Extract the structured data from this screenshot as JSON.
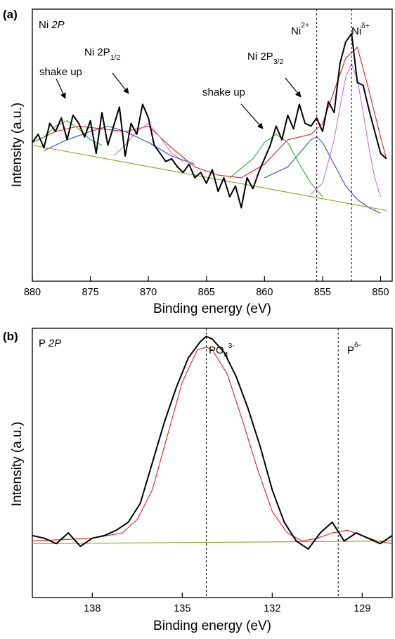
{
  "chart_data": [
    {
      "panel": "(a)",
      "type": "line",
      "label": "Ni 2P",
      "xlabel": "Binding energy (eV)",
      "ylabel": "Intensity (a.u.)",
      "xlim": [
        880,
        849
      ],
      "ylim": [
        0,
        100
      ],
      "x_reversed": true,
      "x_ticks": [
        880,
        875,
        870,
        865,
        860,
        855,
        850
      ],
      "y_ticks_labeled": false,
      "grid": false,
      "reference_lines": [
        {
          "x": 855.5,
          "label": "Ni",
          "sup": "2+"
        },
        {
          "x": 852.5,
          "label": "Ni",
          "sup": "δ+"
        }
      ],
      "annotations": [
        {
          "text": "shake up",
          "x": 877.2,
          "y": 60
        },
        {
          "text": "Ni 2P",
          "sub": "1/2",
          "x": 872.5,
          "y": 66
        },
        {
          "text": "shake up",
          "x": 859.6,
          "y": 63
        },
        {
          "text": "Ni 2P",
          "sub": "3/2",
          "x": 857.2,
          "y": 66
        }
      ],
      "series": [
        {
          "color": "#000000",
          "x": [
            880,
            879.5,
            879,
            878.5,
            878,
            877.5,
            877,
            876.5,
            876,
            875.5,
            875,
            874.5,
            874,
            873.5,
            873,
            872.5,
            872,
            871.5,
            871,
            870.5,
            870,
            869.5,
            869,
            868.5,
            868,
            867.5,
            867,
            866.5,
            866,
            865.5,
            865,
            864.5,
            864,
            863.5,
            863,
            862.5,
            862,
            861.5,
            861,
            860.5,
            860,
            859.5,
            859,
            858.5,
            858,
            857.5,
            857,
            856.5,
            856,
            855.5,
            855,
            854.5,
            854,
            853.5,
            853,
            852.5,
            852,
            851.5,
            851,
            850.5,
            850,
            849.5
          ],
          "values": [
            51,
            54,
            49,
            58,
            55,
            60,
            52,
            61,
            58,
            53,
            59,
            47,
            62,
            50,
            57,
            64,
            46,
            58,
            54,
            65,
            60,
            50,
            47,
            44,
            45,
            42,
            40,
            43,
            38,
            40,
            36,
            41,
            33,
            38,
            31,
            35,
            27,
            38,
            34,
            40,
            45,
            50,
            57,
            52,
            61,
            56,
            65,
            58,
            57,
            60,
            55,
            66,
            62,
            80,
            88,
            91,
            73,
            72,
            63,
            55,
            47,
            45
          ]
        }
      ],
      "fit_components": [
        {
          "name": "envelope",
          "color": "#e02020",
          "x": [
            880,
            878,
            876,
            874,
            872,
            870,
            868,
            866,
            864,
            862,
            860,
            858,
            856,
            855,
            854,
            853,
            852,
            851,
            850,
            849.5
          ],
          "values": [
            51,
            55,
            57,
            56,
            55,
            57,
            49,
            42,
            39,
            38,
            43,
            52,
            54,
            58,
            70,
            82,
            86,
            70,
            53,
            45
          ]
        },
        {
          "name": "peak 852.5",
          "color": "#d070d0",
          "x": [
            856,
            855,
            854,
            853.5,
            853,
            852.5,
            852,
            851.5,
            851,
            850.5,
            850
          ],
          "values": [
            32,
            36,
            52,
            64,
            75,
            80,
            74,
            62,
            49,
            38,
            31
          ]
        },
        {
          "name": "peak 855.5",
          "color": "#3050c0",
          "x": [
            860,
            858,
            857,
            856,
            855.5,
            855,
            854,
            853,
            852,
            851,
            850
          ],
          "values": [
            38,
            42,
            47,
            52,
            53,
            51,
            43,
            35,
            30,
            27,
            25
          ]
        },
        {
          "name": "peak 859",
          "color": "#30b030",
          "x": [
            863,
            861,
            860,
            859,
            858,
            857,
            856,
            855
          ],
          "values": [
            38,
            45,
            51,
            54,
            51,
            43,
            36,
            31
          ]
        },
        {
          "name": "peak 870",
          "color": "#d070d0",
          "x": [
            873,
            872,
            871,
            870,
            869,
            868,
            867
          ],
          "values": [
            46,
            50,
            55,
            58,
            53,
            47,
            44
          ]
        },
        {
          "name": "peak 873.5",
          "color": "#3050c0",
          "x": [
            879,
            877,
            875,
            873.5,
            872,
            870,
            868,
            866
          ],
          "values": [
            48,
            52,
            55,
            57,
            55,
            51,
            46,
            43
          ]
        },
        {
          "name": "peak 877",
          "color": "#30b030",
          "x": [
            880,
            879,
            878,
            877,
            876,
            875,
            874
          ],
          "values": [
            51,
            53,
            57,
            59,
            56,
            52,
            50
          ]
        },
        {
          "name": "baseline",
          "color": "#90a020",
          "x": [
            880,
            849.5
          ],
          "values": [
            50,
            26
          ]
        }
      ]
    },
    {
      "panel": "(b)",
      "type": "line",
      "label": "P 2P",
      "xlabel": "Binding energy (eV)",
      "ylabel": "Intensity (a.u.)",
      "xlim": [
        140,
        128
      ],
      "ylim": [
        0,
        100
      ],
      "x_reversed": true,
      "x_ticks": [
        138,
        135,
        132,
        129
      ],
      "y_ticks_labeled": false,
      "grid": false,
      "reference_lines": [
        {
          "x": 134.2,
          "label": "PO",
          "sub": "4",
          "sup": "3-"
        },
        {
          "x": 129.8,
          "label": "P",
          "sup": "δ-"
        }
      ],
      "series": [
        {
          "color": "#000000",
          "x": [
            140,
            139.6,
            139.2,
            138.8,
            138.4,
            138,
            137.6,
            137.2,
            136.8,
            136.4,
            136,
            135.6,
            135.2,
            134.8,
            134.4,
            134.2,
            134,
            133.6,
            133.2,
            132.8,
            132.4,
            132,
            131.6,
            131.2,
            130.8,
            130.4,
            130,
            129.6,
            129.2,
            128.8,
            128.4,
            128
          ],
          "values": [
            23,
            22,
            20,
            24,
            19,
            22,
            23,
            25,
            28,
            35,
            50,
            65,
            78,
            89,
            95,
            97,
            96,
            91,
            82,
            70,
            56,
            40,
            28,
            21,
            18,
            24,
            28,
            21,
            24,
            22,
            20,
            23
          ]
        }
      ],
      "fit_components": [
        {
          "name": "envelope",
          "color": "#e02020",
          "x": [
            140,
            138,
            137,
            136.5,
            136,
            135.5,
            135,
            134.5,
            134.2,
            134,
            133.5,
            133,
            132.5,
            132,
            131.5,
            131,
            130.5,
            130,
            129.5,
            129,
            128.5,
            128
          ],
          "values": [
            21,
            22,
            24,
            29,
            40,
            60,
            80,
            92,
            93,
            92,
            83,
            66,
            48,
            32,
            24,
            21,
            22,
            24,
            25,
            23,
            21,
            20
          ]
        },
        {
          "name": "baseline",
          "color": "#90a020",
          "x": [
            140,
            128
          ],
          "values": [
            20,
            21
          ]
        }
      ]
    }
  ],
  "panels": {
    "a": {
      "tag": "(a)",
      "label_main": "Ni ",
      "label_italic": "2P",
      "ticks": [
        "880",
        "875",
        "870",
        "865",
        "860",
        "855",
        "850"
      ],
      "xlabel": "Binding energy (eV)",
      "ylabel": "Intensity (a.u.)",
      "ref1_base": "Ni",
      "ref1_sup": "2+",
      "ref2_base": "Ni",
      "ref2_sup": "δ+",
      "shake1": "shake up",
      "ni12_base": "Ni 2P",
      "ni12_sub": "1/2",
      "shake2": "shake up",
      "ni32_base": "Ni 2P",
      "ni32_sub": "3/2"
    },
    "b": {
      "tag": "(b)",
      "label_main": "P ",
      "label_italic": "2P",
      "ticks": [
        "138",
        "135",
        "132",
        "129"
      ],
      "xlabel": "Binding energy (eV)",
      "ylabel": "Intensity (a.u.)",
      "po_base": "PO",
      "po_sub": "4",
      "po_sup": "3-",
      "p_base": "P",
      "p_sup": "δ-"
    }
  }
}
